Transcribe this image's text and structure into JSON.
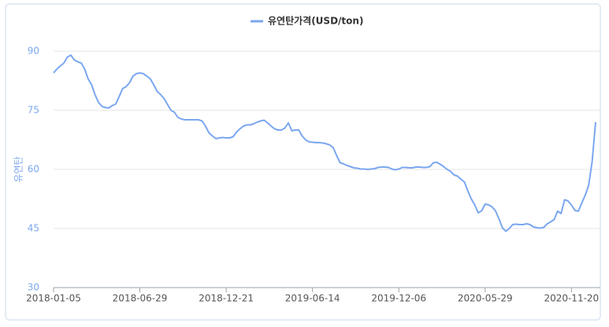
{
  "chart_data": {
    "type": "line",
    "ylabel": "유연탄",
    "categories": [
      "2018-01-05",
      null,
      null,
      null,
      null,
      null,
      null,
      null,
      null,
      null,
      null,
      null,
      null,
      null,
      null,
      null,
      null,
      null,
      null,
      null,
      null,
      null,
      null,
      null,
      null,
      "2018-06-29",
      null,
      null,
      null,
      null,
      null,
      null,
      null,
      null,
      null,
      null,
      null,
      null,
      null,
      null,
      null,
      null,
      null,
      null,
      null,
      null,
      null,
      null,
      null,
      null,
      "2018-12-21",
      null,
      null,
      null,
      null,
      null,
      null,
      null,
      null,
      null,
      null,
      null,
      null,
      null,
      null,
      null,
      null,
      null,
      null,
      null,
      null,
      null,
      null,
      null,
      null,
      "2019-06-14",
      null,
      null,
      null,
      null,
      null,
      null,
      null,
      null,
      null,
      null,
      null,
      null,
      null,
      null,
      null,
      null,
      null,
      null,
      null,
      null,
      null,
      null,
      null,
      null,
      "2019-12-06",
      null,
      null,
      null,
      null,
      null,
      null,
      null,
      null,
      null,
      null,
      null,
      null,
      null,
      null,
      null,
      null,
      null,
      null,
      null,
      null,
      null,
      null,
      null,
      null,
      "2020-05-29",
      null,
      null,
      null,
      null,
      null,
      null,
      null,
      null,
      null,
      null,
      null,
      null,
      null,
      null,
      null,
      null,
      null,
      null,
      null,
      null,
      null,
      null,
      null,
      null,
      "2020-11-20",
      null,
      null,
      null,
      null,
      null,
      null,
      null
    ],
    "series": [
      {
        "name": "유연탄가격(USD/ton)",
        "color": "#7ba7ef",
        "values": [
          84.5,
          85.5,
          86.3,
          87,
          88.5,
          89,
          87.8,
          87.3,
          87,
          85.5,
          83,
          81.5,
          79,
          77,
          76,
          75.7,
          75.6,
          76.2,
          76.6,
          78.5,
          80.5,
          81,
          82,
          83.7,
          84.3,
          84.5,
          84.3,
          83.7,
          83,
          81.5,
          79.8,
          79,
          78,
          76.5,
          75,
          74.5,
          73.2,
          72.8,
          72.6,
          72.6,
          72.6,
          72.6,
          72.6,
          72.3,
          71,
          69.3,
          68.5,
          67.8,
          68,
          68.1,
          68,
          68,
          68.3,
          69.5,
          70.3,
          71,
          71.3,
          71.3,
          71.6,
          72,
          72.3,
          72.5,
          71.8,
          71,
          70.3,
          70,
          70,
          70.5,
          71.8,
          69.8,
          70,
          70,
          68.5,
          67.5,
          67,
          66.9,
          66.8,
          66.8,
          66.7,
          66.5,
          66.2,
          65.5,
          63.5,
          61.7,
          61.4,
          61,
          60.7,
          60.4,
          60.3,
          60.1,
          60.1,
          60,
          60.1,
          60.2,
          60.5,
          60.6,
          60.6,
          60.5,
          60.1,
          59.9,
          60.1,
          60.5,
          60.5,
          60.4,
          60.4,
          60.6,
          60.6,
          60.5,
          60.5,
          60.7,
          61.7,
          61.8,
          61.3,
          60.7,
          60,
          59.5,
          58.6,
          58.3,
          57.5,
          56.8,
          54.5,
          52.5,
          51,
          49,
          49.5,
          51.2,
          51,
          50.5,
          49.5,
          47.5,
          45.2,
          44.3,
          45,
          46,
          46.1,
          46,
          46,
          46.2,
          46,
          45.4,
          45.2,
          45.1,
          45.3,
          46.2,
          46.7,
          47.3,
          49.4,
          48.8,
          52.3,
          52,
          51,
          49.6,
          49.4,
          51.5,
          53.5,
          56,
          62,
          72
        ]
      }
    ],
    "ylim": [
      30,
      90
    ],
    "yticks": [
      30,
      45,
      60,
      75,
      90
    ],
    "grid": true,
    "legend": "top"
  }
}
